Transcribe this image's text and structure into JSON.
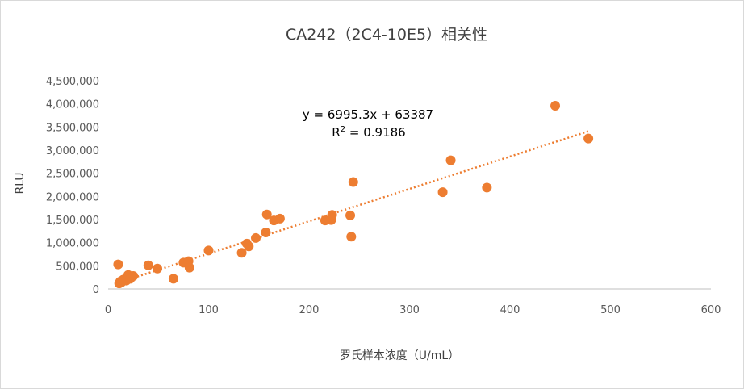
{
  "chart_data": {
    "type": "scatter",
    "title": "CA242（2C4-10E5）相关性",
    "xlabel": "罗氏样本浓度（U/mL）",
    "ylabel": "RLU",
    "xlim": [
      0,
      600
    ],
    "ylim": [
      0,
      4500000
    ],
    "xticks": [
      "0",
      "100",
      "200",
      "300",
      "400",
      "500",
      "600"
    ],
    "yticks": [
      "0",
      "500,000",
      "1,000,000",
      "1,500,000",
      "2,000,000",
      "2,500,000",
      "3,000,000",
      "3,500,000",
      "4,000,000",
      "4,500,000"
    ],
    "grid": false,
    "legend": "none",
    "series": [
      {
        "color": "#ED7D31",
        "points": [
          [
            10,
            530000
          ],
          [
            11,
            120000
          ],
          [
            12,
            160000
          ],
          [
            13,
            140000
          ],
          [
            15,
            200000
          ],
          [
            18,
            180000
          ],
          [
            20,
            300000
          ],
          [
            22,
            220000
          ],
          [
            25,
            280000
          ],
          [
            40,
            510000
          ],
          [
            49,
            440000
          ],
          [
            65,
            220000
          ],
          [
            75,
            570000
          ],
          [
            80,
            600000
          ],
          [
            81,
            460000
          ],
          [
            100,
            830000
          ],
          [
            133,
            780000
          ],
          [
            138,
            980000
          ],
          [
            140,
            920000
          ],
          [
            147,
            1100000
          ],
          [
            157,
            1220000
          ],
          [
            158,
            1610000
          ],
          [
            165,
            1480000
          ],
          [
            171,
            1520000
          ],
          [
            216,
            1480000
          ],
          [
            222,
            1490000
          ],
          [
            223,
            1600000
          ],
          [
            241,
            1590000
          ],
          [
            242,
            1130000
          ],
          [
            244,
            2310000
          ],
          [
            333,
            2090000
          ],
          [
            341,
            2780000
          ],
          [
            377,
            2190000
          ],
          [
            445,
            3960000
          ],
          [
            478,
            3250000
          ]
        ]
      }
    ],
    "trendline": {
      "style": "dotted",
      "color": "#ED7D31",
      "slope": 6995.3,
      "intercept": 63387,
      "x_range": [
        10,
        478
      ]
    },
    "annotations": {
      "equation": "y = 6995.3x + 63387",
      "r2_prefix": "R",
      "r2_sup": "2",
      "r2_value": " = 0.9186"
    }
  }
}
